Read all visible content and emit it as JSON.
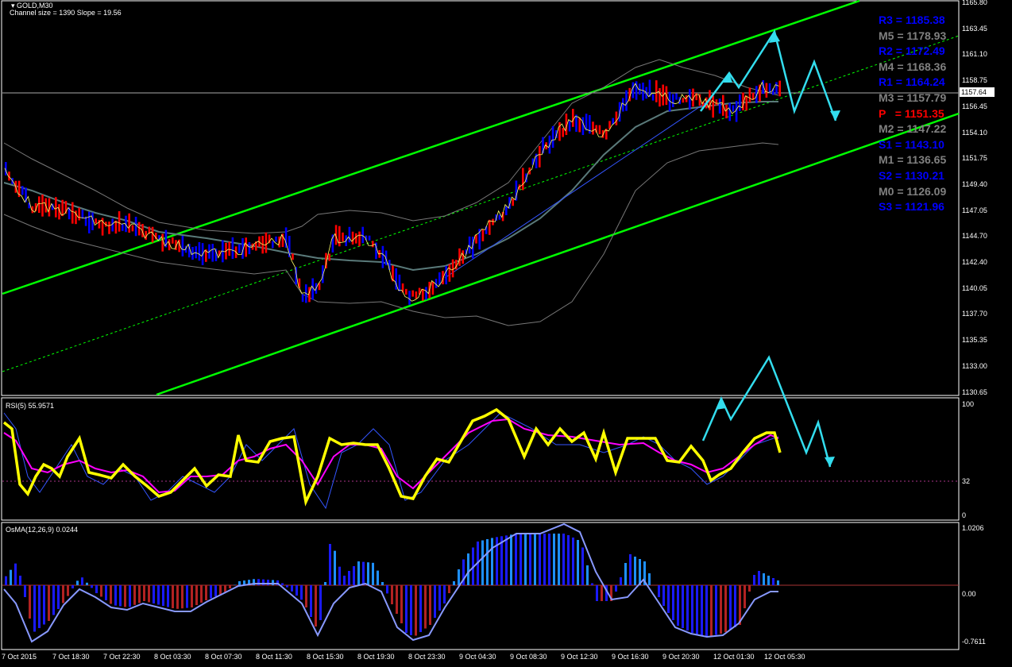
{
  "window": {
    "title": "GOLD,M30",
    "channel_info": "Channel size = 1390 Slope = 19.56"
  },
  "price_axis": {
    "ticks": [
      "1165.80",
      "1163.45",
      "1161.10",
      "1158.75",
      "1156.45",
      "1154.10",
      "1151.75",
      "1149.40",
      "1147.05",
      "1144.70",
      "1142.40",
      "1140.05",
      "1137.70",
      "1135.35",
      "1133.00",
      "1130.65"
    ],
    "current_price": "1157.64"
  },
  "pivots": [
    {
      "label": "R3 = 1185.38",
      "color": "#0000ff"
    },
    {
      "label": "M5 = 1178.93",
      "color": "#808080"
    },
    {
      "label": "R2 = 1172.49",
      "color": "#0000ff"
    },
    {
      "label": "M4 = 1168.36",
      "color": "#808080"
    },
    {
      "label": "R1 = 1164.24",
      "color": "#0000ff"
    },
    {
      "label": "M3 = 1157.79",
      "color": "#808080"
    },
    {
      "label": "P   = 1151.35",
      "color": "#ff0000"
    },
    {
      "label": "M2 = 1147.22",
      "color": "#808080"
    },
    {
      "label": "S1 = 1143.10",
      "color": "#0000ff"
    },
    {
      "label": "M1 = 1136.65",
      "color": "#808080"
    },
    {
      "label": "S2 = 1130.21",
      "color": "#0000ff"
    },
    {
      "label": "M0 = 1126.09",
      "color": "#808080"
    },
    {
      "label": "S3 = 1121.96",
      "color": "#0000ff"
    }
  ],
  "rsi_panel": {
    "title": "RSI(5) 55.9571",
    "ticks": [
      "100",
      "32",
      "0"
    ]
  },
  "osma_panel": {
    "title": "OsMA(12,26,9) 0.0244",
    "ticks": [
      "1.0206",
      "0.00",
      "-0.7611"
    ]
  },
  "time_axis": [
    "7 Oct 2015",
    "7 Oct 18:30",
    "7 Oct 22:30",
    "8 Oct 03:30",
    "8 Oct 07:30",
    "8 Oct 11:30",
    "8 Oct 15:30",
    "8 Oct 19:30",
    "8 Oct 23:30",
    "9 Oct 04:30",
    "9 Oct 08:30",
    "9 Oct 12:30",
    "9 Oct 16:30",
    "9 Oct 20:30",
    "12 Oct 01:30",
    "12 Oct 05:30"
  ],
  "colors": {
    "background": "#000000",
    "bull_bar": "#0000ff",
    "bear_bar": "#ff0000",
    "channel": "#00ff00",
    "arrow": "#33ddee",
    "rsi_fast": "#ffff00",
    "rsi_slow": "#ff00ff",
    "osma_pos": "#1e90ff",
    "osma_neg": "#b22222"
  }
}
